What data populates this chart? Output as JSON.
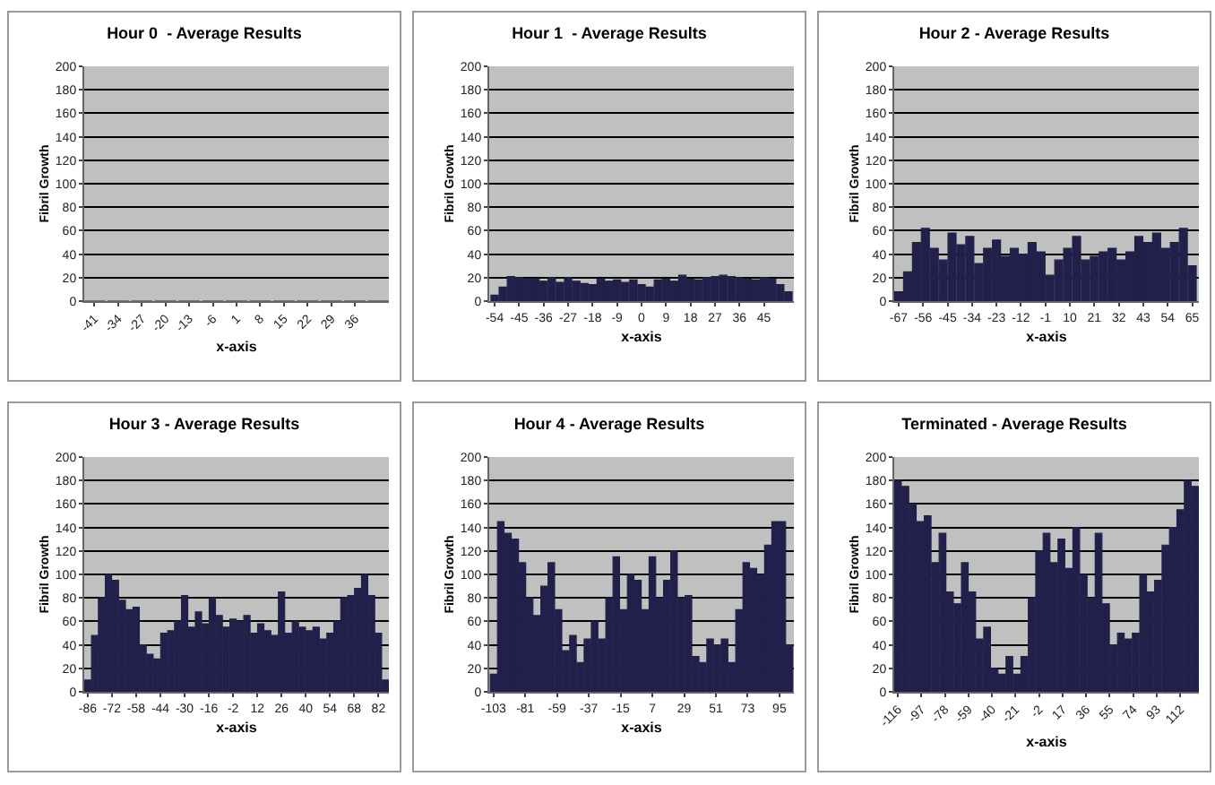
{
  "chart_data": [
    {
      "type": "bar",
      "title": "Hour 0  - Average Results",
      "xlabel": "x-axis",
      "ylabel": "Fibril Growth",
      "color": "#20204a",
      "grid": "y",
      "x": [
        -41,
        -34,
        -27,
        -20,
        -13,
        -6,
        1,
        8,
        15,
        22,
        29,
        36,
        43
      ],
      "values": [
        0,
        0,
        0,
        0,
        0,
        0,
        0,
        0,
        0,
        0,
        0,
        0,
        0
      ],
      "xlim": [
        -44,
        46
      ],
      "xticks": [
        -41,
        -34,
        -27,
        -20,
        -13,
        -6,
        1,
        8,
        15,
        22,
        29,
        36
      ],
      "ylim": [
        0,
        200
      ],
      "yticks": [
        0,
        20,
        40,
        60,
        80,
        100,
        120,
        140,
        160,
        180,
        200
      ]
    },
    {
      "type": "bar",
      "title": "Hour 1  - Average Results",
      "xlabel": "x-axis",
      "ylabel": "Fibril Growth",
      "color": "#20204a",
      "grid": "y",
      "x": [
        -54,
        -51,
        -48,
        -45,
        -42,
        -39,
        -36,
        -33,
        -30,
        -27,
        -24,
        -21,
        -18,
        -15,
        -12,
        -9,
        -6,
        -3,
        0,
        3,
        6,
        9,
        12,
        15,
        18,
        21,
        24,
        27,
        30,
        33,
        36,
        39,
        42,
        45,
        48,
        51,
        54
      ],
      "values": [
        5,
        12,
        21,
        20,
        19,
        19,
        17,
        20,
        16,
        20,
        17,
        15,
        14,
        19,
        17,
        18,
        16,
        18,
        14,
        12,
        18,
        19,
        17,
        22,
        19,
        18,
        20,
        21,
        22,
        21,
        20,
        19,
        18,
        20,
        19,
        14,
        8
      ],
      "xlim": [
        -56,
        56
      ],
      "xticks": [
        -54,
        -45,
        -36,
        -27,
        -18,
        -9,
        0,
        9,
        18,
        27,
        36,
        45
      ],
      "ylim": [
        0,
        200
      ],
      "yticks": [
        0,
        20,
        40,
        60,
        80,
        100,
        120,
        140,
        160,
        180,
        200
      ]
    },
    {
      "type": "bar",
      "title": "Hour 2 - Average Results",
      "xlabel": "x-axis",
      "ylabel": "Fibril Growth",
      "color": "#20204a",
      "grid": "y",
      "x": [
        -67,
        -63,
        -59,
        -55,
        -51,
        -47,
        -43,
        -39,
        -35,
        -31,
        -27,
        -23,
        -19,
        -15,
        -11,
        -7,
        -3,
        1,
        5,
        9,
        13,
        17,
        21,
        25,
        29,
        33,
        37,
        41,
        45,
        49,
        53,
        57,
        61,
        65
      ],
      "values": [
        8,
        25,
        50,
        62,
        45,
        35,
        58,
        48,
        55,
        32,
        45,
        52,
        38,
        45,
        40,
        50,
        42,
        22,
        35,
        45,
        55,
        35,
        38,
        42,
        45,
        35,
        42,
        55,
        50,
        58,
        45,
        50,
        62,
        30
      ],
      "xlim": [
        -69,
        68
      ],
      "xticks": [
        -67,
        -56,
        -45,
        -34,
        -23,
        -12,
        -1,
        10,
        21,
        32,
        43,
        54,
        65
      ],
      "ylim": [
        0,
        200
      ],
      "yticks": [
        0,
        20,
        40,
        60,
        80,
        100,
        120,
        140,
        160,
        180,
        200
      ]
    },
    {
      "type": "bar",
      "title": "Hour 3 - Average Results",
      "xlabel": "x-axis",
      "ylabel": "Fibril Growth",
      "color": "#20204a",
      "grid": "y",
      "x": [
        -86,
        -82,
        -78,
        -74,
        -70,
        -66,
        -62,
        -58,
        -54,
        -50,
        -46,
        -42,
        -38,
        -34,
        -30,
        -26,
        -22,
        -18,
        -14,
        -10,
        -6,
        -2,
        2,
        6,
        10,
        14,
        18,
        22,
        26,
        30,
        34,
        38,
        42,
        46,
        50,
        54,
        58,
        62,
        66,
        70,
        74,
        78,
        82,
        86
      ],
      "values": [
        10,
        48,
        80,
        100,
        95,
        78,
        70,
        72,
        40,
        32,
        28,
        50,
        52,
        60,
        82,
        55,
        68,
        58,
        80,
        65,
        55,
        62,
        60,
        65,
        50,
        58,
        52,
        48,
        85,
        50,
        60,
        55,
        52,
        55,
        45,
        50,
        60,
        80,
        82,
        88,
        100,
        82,
        50,
        10
      ],
      "xlim": [
        -88,
        88
      ],
      "xticks": [
        -86,
        -72,
        -58,
        -44,
        -30,
        -16,
        -2,
        12,
        26,
        40,
        54,
        68,
        82
      ],
      "ylim": [
        0,
        200
      ],
      "yticks": [
        0,
        20,
        40,
        60,
        80,
        100,
        120,
        140,
        160,
        180,
        200
      ]
    },
    {
      "type": "bar",
      "title": "Hour 4 - Average Results",
      "xlabel": "x-axis",
      "ylabel": "Fibril Growth",
      "color": "#20204a",
      "grid": "y",
      "x": [
        -103,
        -98,
        -93,
        -88,
        -83,
        -78,
        -73,
        -68,
        -63,
        -58,
        -53,
        -48,
        -43,
        -38,
        -33,
        -28,
        -23,
        -18,
        -13,
        -8,
        -3,
        2,
        7,
        12,
        17,
        22,
        27,
        32,
        37,
        42,
        47,
        52,
        57,
        62,
        67,
        72,
        77,
        82,
        87,
        92,
        97,
        102
      ],
      "values": [
        15,
        145,
        135,
        130,
        110,
        80,
        65,
        90,
        110,
        70,
        35,
        48,
        25,
        45,
        60,
        45,
        80,
        115,
        70,
        100,
        95,
        70,
        115,
        80,
        95,
        120,
        80,
        82,
        30,
        25,
        45,
        40,
        45,
        25,
        70,
        110,
        105,
        100,
        125,
        145,
        145,
        40
      ],
      "xlim": [
        -106,
        105
      ],
      "xticks": [
        -103,
        -81,
        -59,
        -37,
        -15,
        7,
        29,
        51,
        73,
        95
      ],
      "ylim": [
        0,
        200
      ],
      "yticks": [
        0,
        20,
        40,
        60,
        80,
        100,
        120,
        140,
        160,
        180,
        200
      ]
    },
    {
      "type": "bar",
      "title": "Terminated - Average Results",
      "xlabel": "x-axis",
      "ylabel": "Fibril Growth",
      "color": "#20204a",
      "grid": "y",
      "x": [
        -116,
        -110,
        -104,
        -98,
        -92,
        -86,
        -80,
        -74,
        -68,
        -62,
        -56,
        -50,
        -44,
        -38,
        -32,
        -26,
        -20,
        -14,
        -8,
        -2,
        4,
        10,
        16,
        22,
        28,
        34,
        40,
        46,
        52,
        58,
        64,
        70,
        76,
        82,
        88,
        94,
        100,
        106,
        112,
        118,
        124
      ],
      "values": [
        180,
        175,
        160,
        145,
        150,
        110,
        135,
        85,
        75,
        110,
        85,
        45,
        55,
        20,
        15,
        30,
        15,
        30,
        80,
        120,
        135,
        110,
        130,
        105,
        140,
        100,
        80,
        135,
        75,
        40,
        50,
        45,
        50,
        100,
        85,
        95,
        125,
        140,
        155,
        180,
        175
      ],
      "xlim": [
        -119,
        127
      ],
      "xticks": [
        -116,
        -97,
        -78,
        -59,
        -40,
        -21,
        -2,
        17,
        36,
        55,
        74,
        93,
        112
      ],
      "ylim": [
        0,
        200
      ],
      "yticks": [
        0,
        20,
        40,
        60,
        80,
        100,
        120,
        140,
        160,
        180,
        200
      ]
    }
  ]
}
